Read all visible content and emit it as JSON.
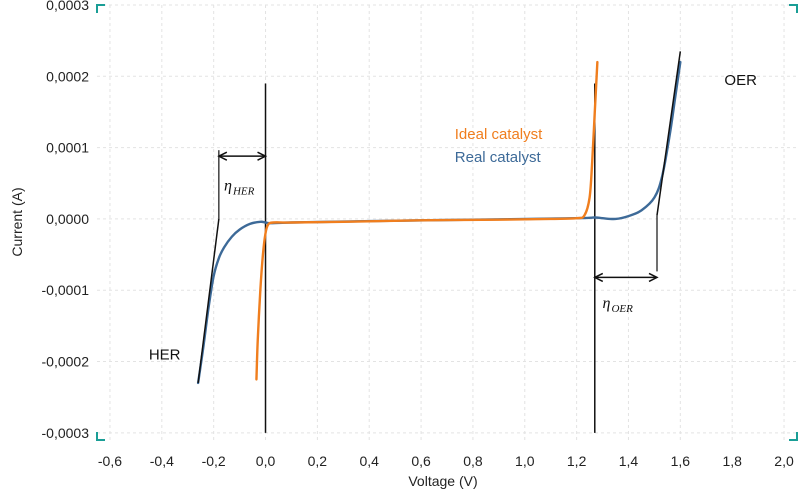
{
  "chart_data": {
    "type": "line",
    "xlabel": "Voltage (V)",
    "ylabel": "Current (A)",
    "xlim": [
      -0.65,
      2.05
    ],
    "ylim": [
      -0.00031,
      0.0003
    ],
    "x_ticks": [
      -0.6,
      -0.4,
      -0.2,
      0.0,
      0.2,
      0.4,
      0.6,
      0.8,
      1.0,
      1.2,
      1.4,
      1.6,
      1.8,
      2.0
    ],
    "x_tick_labels": [
      "-0,6",
      "-0,4",
      "-0,2",
      "0,0",
      "0,2",
      "0,4",
      "0,6",
      "0,8",
      "1,0",
      "1,2",
      "1,4",
      "1,6",
      "1,8",
      "2,0"
    ],
    "y_ticks": [
      0.0003,
      0.0002,
      0.0001,
      0.0,
      -0.0001,
      -0.0002,
      -0.0003
    ],
    "y_tick_labels": [
      "0,0003",
      "0,0002",
      "0,0001",
      "0,0000",
      "-0,0001",
      "-0,0002",
      "-0,0003"
    ],
    "grid": true,
    "series": [
      {
        "name": "Ideal catalyst",
        "color": "#f07e1e",
        "x": [
          -0.035,
          -0.03,
          -0.02,
          -0.01,
          0.0,
          0.01,
          0.03,
          0.1,
          0.3,
          0.6,
          0.9,
          1.1,
          1.2,
          1.23,
          1.25,
          1.26,
          1.27,
          1.28
        ],
        "y": [
          -0.000225,
          -0.00017,
          -0.0001,
          -5e-05,
          -2e-05,
          -8e-06,
          -5e-06,
          -5e-06,
          -4e-06,
          -2e-06,
          -1e-06,
          0.0,
          1e-06,
          5e-06,
          3e-05,
          8e-05,
          0.00015,
          0.00022
        ]
      },
      {
        "name": "Real catalyst",
        "color": "#3d6a98",
        "x": [
          -0.26,
          -0.24,
          -0.22,
          -0.2,
          -0.18,
          -0.16,
          -0.13,
          -0.1,
          -0.06,
          -0.02,
          0.0,
          0.02,
          0.1,
          0.4,
          0.8,
          1.2,
          1.27,
          1.3,
          1.35,
          1.4,
          1.45,
          1.5,
          1.53,
          1.56,
          1.58,
          1.6
        ],
        "y": [
          -0.00023,
          -0.00018,
          -0.000125,
          -8e-05,
          -5.5e-05,
          -4e-05,
          -2.5e-05,
          -1.5e-05,
          -7e-06,
          -4e-06,
          -5e-06,
          -6e-06,
          -5e-06,
          -3e-06,
          -1e-06,
          1e-06,
          2e-06,
          1e-06,
          0.0,
          4e-06,
          1.2e-05,
          3e-05,
          6e-05,
          0.00012,
          0.00017,
          0.00022
        ]
      }
    ],
    "vertical_lines": [
      {
        "x": 0.0,
        "y": [
          -0.0003,
          0.00019
        ]
      },
      {
        "x": 1.27,
        "y": [
          -0.0003,
          0.00019
        ]
      }
    ],
    "tangent_lines": [
      {
        "x": [
          -0.26,
          -0.18
        ],
        "y": [
          -0.00023,
          0.0
        ]
      },
      {
        "x": [
          1.51,
          1.6
        ],
        "y": [
          5e-06,
          0.000235
        ]
      }
    ],
    "overpotential_arrows": [
      {
        "label": "HER",
        "x": [
          -0.18,
          0.0
        ],
        "y": 8.8e-05
      },
      {
        "label": "OER",
        "x": [
          1.27,
          1.51
        ],
        "y": -8.2e-05
      }
    ],
    "annotations": [
      {
        "text": "Ideal catalyst",
        "x": 0.73,
        "y": 0.000112,
        "color": "#f07e1e"
      },
      {
        "text": "Real catalyst",
        "x": 0.73,
        "y": 8e-05,
        "color": "#3d6a98"
      },
      {
        "text": "OER",
        "x": 1.77,
        "y": 0.000188,
        "color": "#111111"
      },
      {
        "text": "HER",
        "x": -0.45,
        "y": -0.000197,
        "color": "#111111"
      }
    ],
    "eta_labels": [
      {
        "main": "η",
        "sub": "HER",
        "x": -0.16,
        "y": 4e-05
      },
      {
        "main": "η",
        "sub": "OER",
        "x": 1.3,
        "y": -0.000125
      }
    ]
  }
}
